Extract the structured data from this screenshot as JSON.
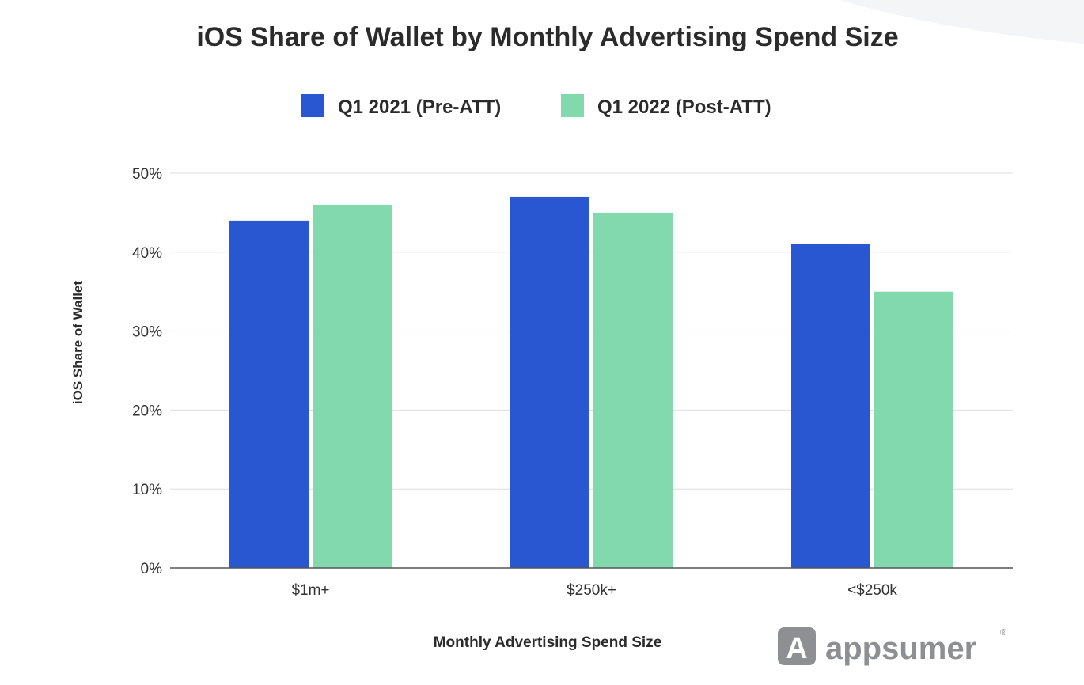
{
  "chart_data": {
    "type": "bar",
    "title": "iOS Share of Wallet by Monthly Advertising Spend Size",
    "xlabel": "Monthly Advertising Spend Size",
    "ylabel": "iOS Share of Wallet",
    "categories": [
      "$1m+",
      "$250k+",
      "<$250k"
    ],
    "series": [
      {
        "name": "Q1 2021 (Pre-ATT)",
        "values": [
          44,
          47,
          41
        ],
        "color": "#2857d1"
      },
      {
        "name": "Q1 2022 (Post-ATT)",
        "values": [
          46,
          45,
          35
        ],
        "color": "#83d9ae"
      }
    ],
    "ylim": [
      0,
      50
    ],
    "yticks": [
      "0%",
      "10%",
      "20%",
      "30%",
      "40%",
      "50%"
    ],
    "ytick_values": [
      0,
      10,
      20,
      30,
      40,
      50
    ],
    "grid": true,
    "legend_position": "top-center"
  },
  "logo": {
    "text": "appsumer",
    "mark": "A",
    "icon": "appsumer-logo-icon",
    "color": "#8d8f93"
  }
}
